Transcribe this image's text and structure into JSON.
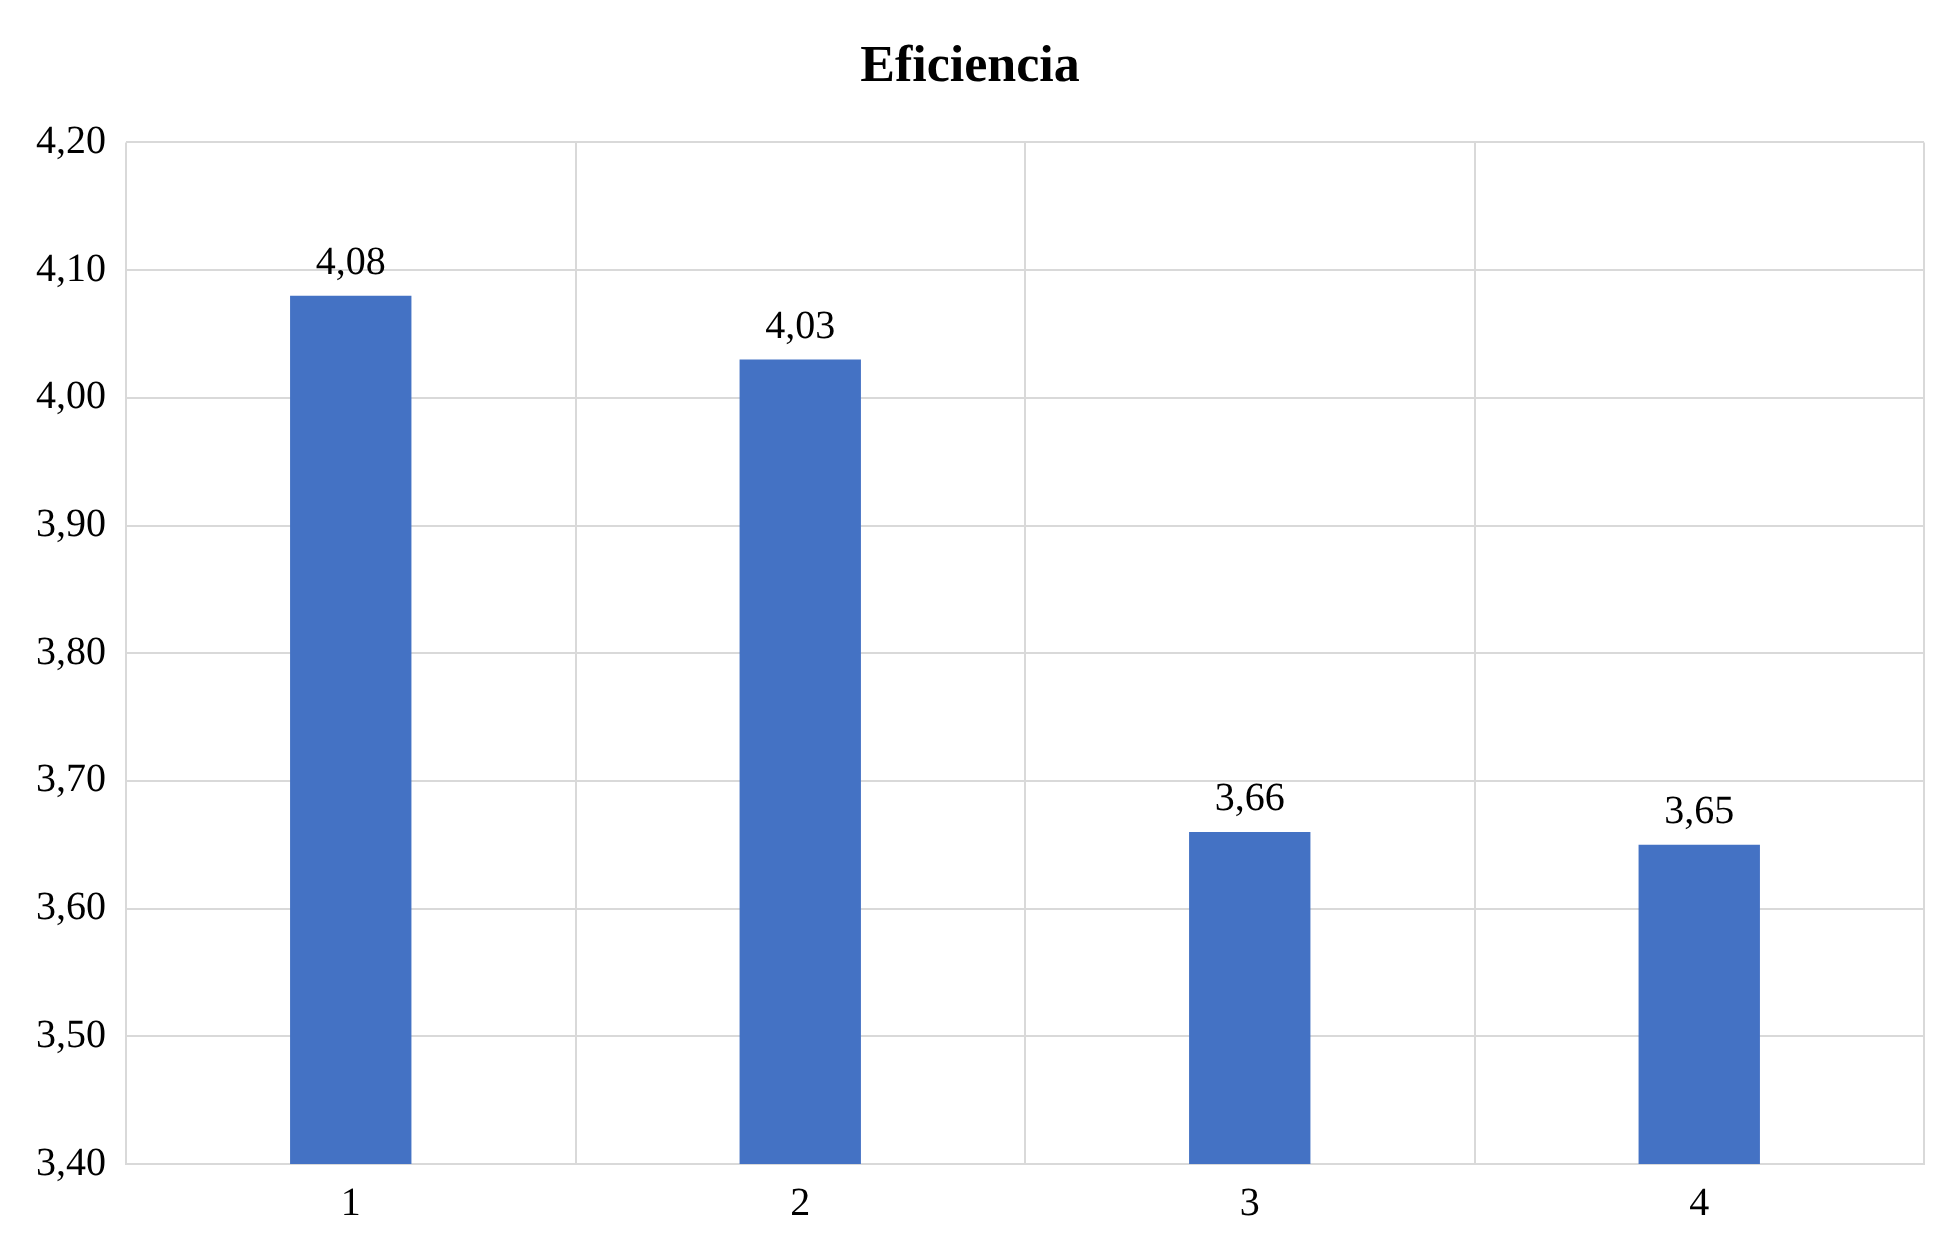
{
  "chart_data": {
    "type": "bar",
    "title": "Eficiencia",
    "categories": [
      "1",
      "2",
      "3",
      "4"
    ],
    "series": [
      {
        "color": "#4472c4",
        "values": [
          4.08,
          4.03,
          3.66,
          3.65
        ],
        "value_labels": [
          "4,08",
          "4,03",
          "3,66",
          "3,65"
        ]
      }
    ],
    "ylim": [
      3.4,
      4.2
    ],
    "yticks": [
      {
        "value": 3.4,
        "label": "3,40"
      },
      {
        "value": 3.5,
        "label": "3,50"
      },
      {
        "value": 3.6,
        "label": "3,60"
      },
      {
        "value": 3.7,
        "label": "3,70"
      },
      {
        "value": 3.8,
        "label": "3,80"
      },
      {
        "value": 3.9,
        "label": "3,90"
      },
      {
        "value": 4.0,
        "label": "4,00"
      },
      {
        "value": 4.1,
        "label": "4,10"
      },
      {
        "value": 4.2,
        "label": "4,20"
      }
    ],
    "grid": true,
    "legend": false
  }
}
